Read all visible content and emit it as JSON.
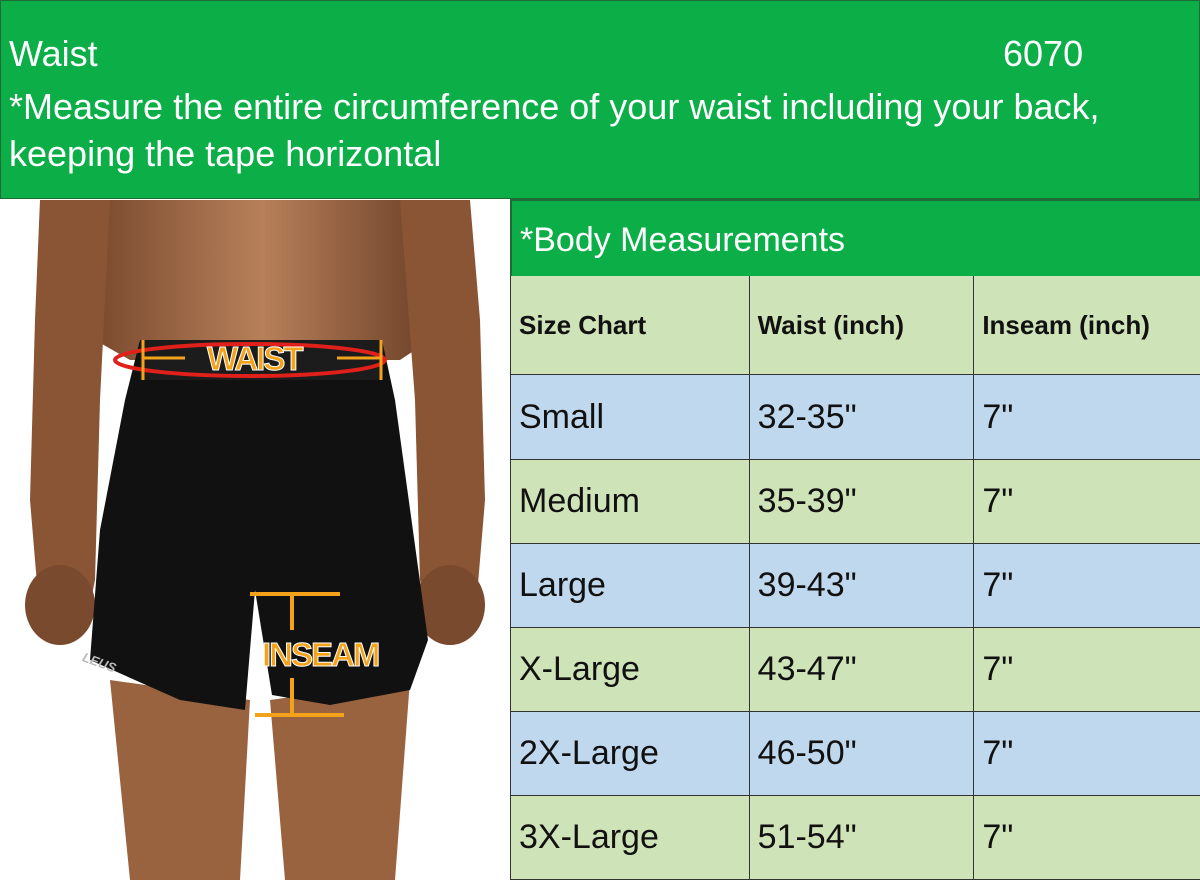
{
  "header": {
    "label": "Waist",
    "code": "6070",
    "instruction": "*Measure the entire circumference of your waist including your back, keeping the tape horizontal"
  },
  "photo": {
    "waist_label": "WAIST",
    "inseam_label": "INSEAM",
    "brand_logo": "LEUS"
  },
  "table": {
    "title": "*Body Measurements",
    "columns": [
      "Size Chart",
      "Waist (inch)",
      "Inseam (inch)"
    ],
    "rows": [
      [
        "Small",
        "32-35\"",
        "7\""
      ],
      [
        "Medium",
        "35-39\"",
        "7\""
      ],
      [
        "Large",
        "39-43\"",
        "7\""
      ],
      [
        "X-Large",
        "43-47\"",
        "7\""
      ],
      [
        "2X-Large",
        "46-50\"",
        "7\""
      ],
      [
        "3X-Large",
        "51-54\"",
        "7\""
      ]
    ]
  },
  "colors": {
    "header_green": "#0cae48",
    "column_header_bg": "#cfe3b8",
    "row_blue": "#c0d8ee",
    "row_green": "#cfe3b8",
    "annotation_orange": "#f5a21b",
    "waist_arrow_red": "#e0201a"
  }
}
